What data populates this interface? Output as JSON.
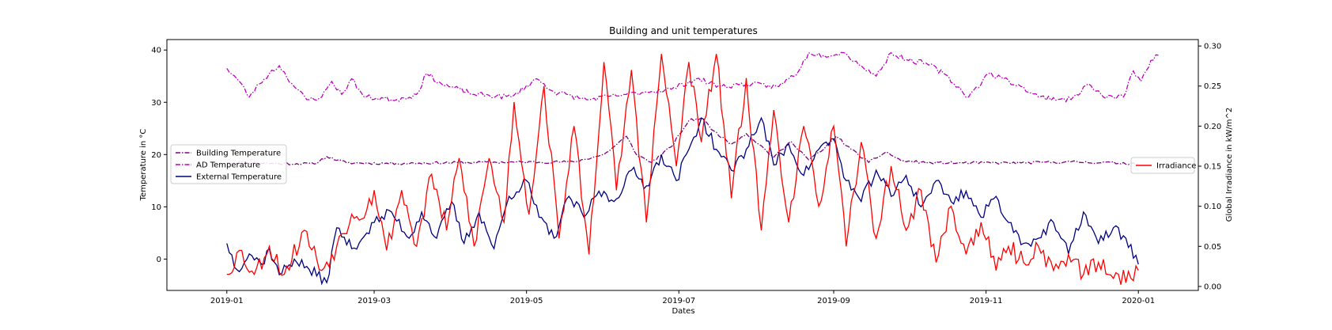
{
  "chart_data": {
    "type": "line",
    "title": "Building and unit temperatures",
    "xlabel": "Dates",
    "ylabel_left": "Temperature in °C",
    "ylabel_right": "Global Irradiance in kW/m^2",
    "x_start": "2019-01-01",
    "x_end": "2020-01-01",
    "xlim": [
      "2018-12-08",
      "2020-01-25"
    ],
    "x_tick_labels": [
      "2019-01",
      "2019-03",
      "2019-05",
      "2019-07",
      "2019-09",
      "2019-11",
      "2020-01"
    ],
    "x_tick_dates": [
      "2019-01-01",
      "2019-03-01",
      "2019-05-01",
      "2019-07-01",
      "2019-09-01",
      "2019-11-01",
      "2020-01-01"
    ],
    "ylim_left": [
      -6,
      42
    ],
    "yticks_left": [
      0,
      10,
      20,
      30,
      40
    ],
    "ylim_right": [
      -0.005,
      0.308
    ],
    "yticks_right": [
      0.0,
      0.05,
      0.1,
      0.15,
      0.2,
      0.25,
      0.3
    ],
    "ytick_labels_right": [
      "0.00",
      "0.05",
      "0.10",
      "0.15",
      "0.20",
      "0.25",
      "0.30"
    ],
    "legend_left_position": "center-left",
    "legend_right_position": "center-right",
    "grid": false,
    "series": [
      {
        "name": "Building Temperature",
        "axis": "left",
        "color": "#800080",
        "style": "dashdot",
        "knots": [
          [
            "2019-01-01",
            18.5
          ],
          [
            "2019-01-20",
            18.3
          ],
          [
            "2019-02-05",
            18.2
          ],
          [
            "2019-02-10",
            19.6
          ],
          [
            "2019-02-18",
            18.4
          ],
          [
            "2019-03-10",
            18.3
          ],
          [
            "2019-04-10",
            18.5
          ],
          [
            "2019-05-20",
            18.6
          ],
          [
            "2019-06-01",
            20.0
          ],
          [
            "2019-06-05",
            21.5
          ],
          [
            "2019-06-10",
            23.5
          ],
          [
            "2019-06-14",
            20.0
          ],
          [
            "2019-06-20",
            18.5
          ],
          [
            "2019-06-28",
            21.5
          ],
          [
            "2019-07-05",
            26.5
          ],
          [
            "2019-07-10",
            27.0
          ],
          [
            "2019-07-15",
            24.5
          ],
          [
            "2019-07-22",
            22.0
          ],
          [
            "2019-07-28",
            24.0
          ],
          [
            "2019-08-02",
            22.0
          ],
          [
            "2019-08-08",
            19.5
          ],
          [
            "2019-08-15",
            22.5
          ],
          [
            "2019-08-22",
            19.0
          ],
          [
            "2019-08-28",
            21.0
          ],
          [
            "2019-09-02",
            23.5
          ],
          [
            "2019-09-08",
            21.0
          ],
          [
            "2019-09-15",
            18.5
          ],
          [
            "2019-09-22",
            20.5
          ],
          [
            "2019-09-28",
            18.8
          ],
          [
            "2019-10-10",
            18.4
          ],
          [
            "2019-11-15",
            18.4
          ],
          [
            "2019-12-05",
            18.6
          ],
          [
            "2020-01-01",
            18.3
          ]
        ]
      },
      {
        "name": "AD Temperature",
        "axis": "left",
        "color": "#C000C0",
        "style": "dashdot",
        "knots": [
          [
            "2019-01-01",
            36.5
          ],
          [
            "2019-01-06",
            34.0
          ],
          [
            "2019-01-10",
            31.0
          ],
          [
            "2019-01-14",
            33.5
          ],
          [
            "2019-01-18",
            35.5
          ],
          [
            "2019-01-22",
            37.0
          ],
          [
            "2019-01-28",
            33.0
          ],
          [
            "2019-02-02",
            30.5
          ],
          [
            "2019-02-08",
            31.0
          ],
          [
            "2019-02-12",
            34.0
          ],
          [
            "2019-02-16",
            31.5
          ],
          [
            "2019-02-20",
            34.5
          ],
          [
            "2019-02-25",
            31.0
          ],
          [
            "2019-03-10",
            30.5
          ],
          [
            "2019-03-18",
            31.5
          ],
          [
            "2019-03-22",
            35.5
          ],
          [
            "2019-03-28",
            33.5
          ],
          [
            "2019-04-10",
            31.5
          ],
          [
            "2019-04-25",
            31.0
          ],
          [
            "2019-05-05",
            34.5
          ],
          [
            "2019-05-12",
            32.0
          ],
          [
            "2019-05-25",
            30.5
          ],
          [
            "2019-06-10",
            31.5
          ],
          [
            "2019-06-18",
            32.0
          ],
          [
            "2019-06-28",
            32.5
          ],
          [
            "2019-07-08",
            34.5
          ],
          [
            "2019-07-18",
            33.0
          ],
          [
            "2019-07-28",
            33.5
          ],
          [
            "2019-08-10",
            33.0
          ],
          [
            "2019-08-18",
            36.0
          ],
          [
            "2019-08-22",
            39.5
          ],
          [
            "2019-08-28",
            39.0
          ],
          [
            "2019-09-05",
            39.5
          ],
          [
            "2019-09-12",
            37.0
          ],
          [
            "2019-09-18",
            35.0
          ],
          [
            "2019-09-24",
            39.5
          ],
          [
            "2019-10-01",
            38.0
          ],
          [
            "2019-10-08",
            37.5
          ],
          [
            "2019-10-15",
            35.5
          ],
          [
            "2019-10-25",
            31.0
          ],
          [
            "2019-11-02",
            35.5
          ],
          [
            "2019-11-08",
            34.5
          ],
          [
            "2019-11-15",
            33.0
          ],
          [
            "2019-11-22",
            31.0
          ],
          [
            "2019-12-05",
            30.5
          ],
          [
            "2019-12-12",
            33.5
          ],
          [
            "2019-12-18",
            31.0
          ],
          [
            "2019-12-26",
            31.0
          ],
          [
            "2019-12-30",
            36.0
          ],
          [
            "2020-01-02",
            34.0
          ],
          [
            "2020-01-06",
            38.0
          ],
          [
            "2020-01-09",
            39.0
          ]
        ]
      },
      {
        "name": "External Temperature",
        "axis": "left",
        "color": "#000080",
        "style": "solid",
        "knots": [
          [
            "2019-01-01",
            3.0
          ],
          [
            "2019-01-05",
            -2.0
          ],
          [
            "2019-01-10",
            1.0
          ],
          [
            "2019-01-15",
            -1.0
          ],
          [
            "2019-01-18",
            2.0
          ],
          [
            "2019-01-22",
            -3.0
          ],
          [
            "2019-01-28",
            0.0
          ],
          [
            "2019-02-03",
            -2.0
          ],
          [
            "2019-02-10",
            -4.5
          ],
          [
            "2019-02-14",
            6.0
          ],
          [
            "2019-02-20",
            2.0
          ],
          [
            "2019-02-26",
            5.0
          ],
          [
            "2019-03-01",
            7.0
          ],
          [
            "2019-03-08",
            9.0
          ],
          [
            "2019-03-15",
            4.0
          ],
          [
            "2019-03-20",
            9.0
          ],
          [
            "2019-03-26",
            4.0
          ],
          [
            "2019-04-01",
            11.0
          ],
          [
            "2019-04-06",
            3.0
          ],
          [
            "2019-04-12",
            9.0
          ],
          [
            "2019-04-18",
            2.0
          ],
          [
            "2019-04-24",
            12.0
          ],
          [
            "2019-05-01",
            15.0
          ],
          [
            "2019-05-06",
            8.0
          ],
          [
            "2019-05-12",
            4.0
          ],
          [
            "2019-05-18",
            12.0
          ],
          [
            "2019-05-24",
            8.0
          ],
          [
            "2019-05-30",
            13.0
          ],
          [
            "2019-06-05",
            11.0
          ],
          [
            "2019-06-12",
            17.0
          ],
          [
            "2019-06-18",
            14.0
          ],
          [
            "2019-06-24",
            20.0
          ],
          [
            "2019-06-30",
            15.0
          ],
          [
            "2019-07-05",
            21.0
          ],
          [
            "2019-07-10",
            27.0
          ],
          [
            "2019-07-16",
            21.0
          ],
          [
            "2019-07-22",
            17.0
          ],
          [
            "2019-07-28",
            21.0
          ],
          [
            "2019-08-03",
            27.0
          ],
          [
            "2019-08-08",
            18.0
          ],
          [
            "2019-08-14",
            22.0
          ],
          [
            "2019-08-20",
            16.0
          ],
          [
            "2019-08-26",
            21.0
          ],
          [
            "2019-09-01",
            23.0
          ],
          [
            "2019-09-06",
            15.0
          ],
          [
            "2019-09-12",
            11.0
          ],
          [
            "2019-09-18",
            17.0
          ],
          [
            "2019-09-24",
            12.0
          ],
          [
            "2019-09-30",
            16.0
          ],
          [
            "2019-10-06",
            10.0
          ],
          [
            "2019-10-12",
            15.0
          ],
          [
            "2019-10-18",
            11.0
          ],
          [
            "2019-10-24",
            13.0
          ],
          [
            "2019-10-30",
            8.0
          ],
          [
            "2019-11-05",
            12.0
          ],
          [
            "2019-11-10",
            7.0
          ],
          [
            "2019-11-16",
            3.0
          ],
          [
            "2019-11-22",
            4.0
          ],
          [
            "2019-11-28",
            7.0
          ],
          [
            "2019-12-04",
            1.0
          ],
          [
            "2019-12-10",
            9.0
          ],
          [
            "2019-12-16",
            3.0
          ],
          [
            "2019-12-22",
            6.0
          ],
          [
            "2019-12-27",
            4.0
          ],
          [
            "2020-01-01",
            -1.0
          ]
        ]
      },
      {
        "name": "Irradiance",
        "axis": "right",
        "color": "#FF0000",
        "style": "solid",
        "knots": [
          [
            "2019-01-01",
            0.015
          ],
          [
            "2019-01-06",
            0.045
          ],
          [
            "2019-01-12",
            0.015
          ],
          [
            "2019-01-18",
            0.05
          ],
          [
            "2019-01-24",
            0.015
          ],
          [
            "2019-02-01",
            0.07
          ],
          [
            "2019-02-08",
            0.02
          ],
          [
            "2019-02-14",
            0.05
          ],
          [
            "2019-02-20",
            0.09
          ],
          [
            "2019-02-26",
            0.095
          ],
          [
            "2019-03-01",
            0.12
          ],
          [
            "2019-03-06",
            0.045
          ],
          [
            "2019-03-12",
            0.12
          ],
          [
            "2019-03-18",
            0.05
          ],
          [
            "2019-03-24",
            0.14
          ],
          [
            "2019-03-30",
            0.07
          ],
          [
            "2019-04-04",
            0.16
          ],
          [
            "2019-04-10",
            0.05
          ],
          [
            "2019-04-16",
            0.16
          ],
          [
            "2019-04-22",
            0.08
          ],
          [
            "2019-04-26",
            0.23
          ],
          [
            "2019-05-02",
            0.09
          ],
          [
            "2019-05-08",
            0.25
          ],
          [
            "2019-05-14",
            0.06
          ],
          [
            "2019-05-20",
            0.2
          ],
          [
            "2019-05-26",
            0.04
          ],
          [
            "2019-06-01",
            0.28
          ],
          [
            "2019-06-06",
            0.12
          ],
          [
            "2019-06-12",
            0.27
          ],
          [
            "2019-06-18",
            0.08
          ],
          [
            "2019-06-24",
            0.29
          ],
          [
            "2019-06-30",
            0.15
          ],
          [
            "2019-07-05",
            0.28
          ],
          [
            "2019-07-10",
            0.18
          ],
          [
            "2019-07-16",
            0.29
          ],
          [
            "2019-07-22",
            0.11
          ],
          [
            "2019-07-28",
            0.26
          ],
          [
            "2019-08-03",
            0.07
          ],
          [
            "2019-08-08",
            0.22
          ],
          [
            "2019-08-14",
            0.08
          ],
          [
            "2019-08-20",
            0.2
          ],
          [
            "2019-08-26",
            0.1
          ],
          [
            "2019-09-01",
            0.2
          ],
          [
            "2019-09-06",
            0.05
          ],
          [
            "2019-09-12",
            0.18
          ],
          [
            "2019-09-18",
            0.06
          ],
          [
            "2019-09-24",
            0.15
          ],
          [
            "2019-09-30",
            0.07
          ],
          [
            "2019-10-06",
            0.12
          ],
          [
            "2019-10-12",
            0.03
          ],
          [
            "2019-10-18",
            0.1
          ],
          [
            "2019-10-24",
            0.04
          ],
          [
            "2019-10-30",
            0.08
          ],
          [
            "2019-11-05",
            0.02
          ],
          [
            "2019-11-10",
            0.05
          ],
          [
            "2019-11-16",
            0.03
          ],
          [
            "2019-11-22",
            0.05
          ],
          [
            "2019-11-28",
            0.02
          ],
          [
            "2019-12-04",
            0.04
          ],
          [
            "2019-12-10",
            0.015
          ],
          [
            "2019-12-16",
            0.03
          ],
          [
            "2019-12-22",
            0.01
          ],
          [
            "2020-01-01",
            0.02
          ]
        ]
      }
    ],
    "legend_left": [
      "Building Temperature",
      "AD Temperature",
      "External Temperature"
    ],
    "legend_right": [
      "Irradiance"
    ]
  }
}
